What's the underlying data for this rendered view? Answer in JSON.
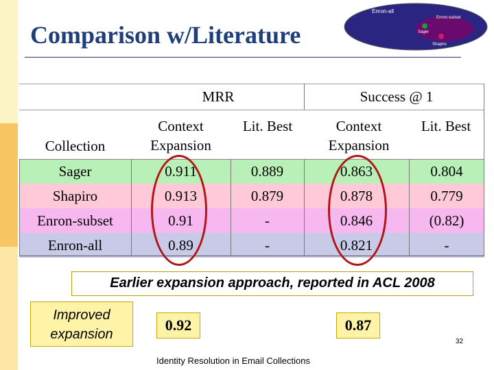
{
  "slide": {
    "title": "Comparison w/Literature",
    "page_number": "32",
    "footer": "Identity Resolution in Email Collections"
  },
  "venn": {
    "outer_label": "Enron-all",
    "inner_label": "Enron-subset",
    "small_label_1": "Sager",
    "small_label_2": "Shapiro",
    "colors": {
      "outer": "#2a2580",
      "inner": "#6a0a6e",
      "sager_dot": "#1d9a3a",
      "shapiro_dot": "#d21a6a"
    }
  },
  "table": {
    "group_headers": [
      "MRR",
      "Success @ 1"
    ],
    "columns": [
      "Collection",
      "Context Expansion",
      "Lit. Best",
      "Context Expansion",
      "Lit. Best"
    ],
    "rows": [
      {
        "collection": "Sager",
        "mrr_context": "0.911",
        "mrr_lit": "0.889",
        "s1_context": "0.863",
        "s1_lit": "0.804",
        "color": "#b8f0b8"
      },
      {
        "collection": "Shapiro",
        "mrr_context": "0.913",
        "mrr_lit": "0.879",
        "s1_context": "0.878",
        "s1_lit": "0.779",
        "color": "#ffc9d8"
      },
      {
        "collection": "Enron-subset",
        "mrr_context": "0.91",
        "mrr_lit": "-",
        "s1_context": "0.846",
        "s1_lit": "(0.82)",
        "color": "#f7b8f0"
      },
      {
        "collection": "Enron-all",
        "mrr_context": "0.89",
        "mrr_lit": "-",
        "s1_context": "0.821",
        "s1_lit": "-",
        "color": "#c9c9e8"
      }
    ]
  },
  "banner": "Earlier expansion approach, reported in ACL 2008",
  "improved": {
    "label_line1": "Improved",
    "label_line2": "expansion",
    "mrr_value": "0.92",
    "s1_value": "0.87"
  }
}
